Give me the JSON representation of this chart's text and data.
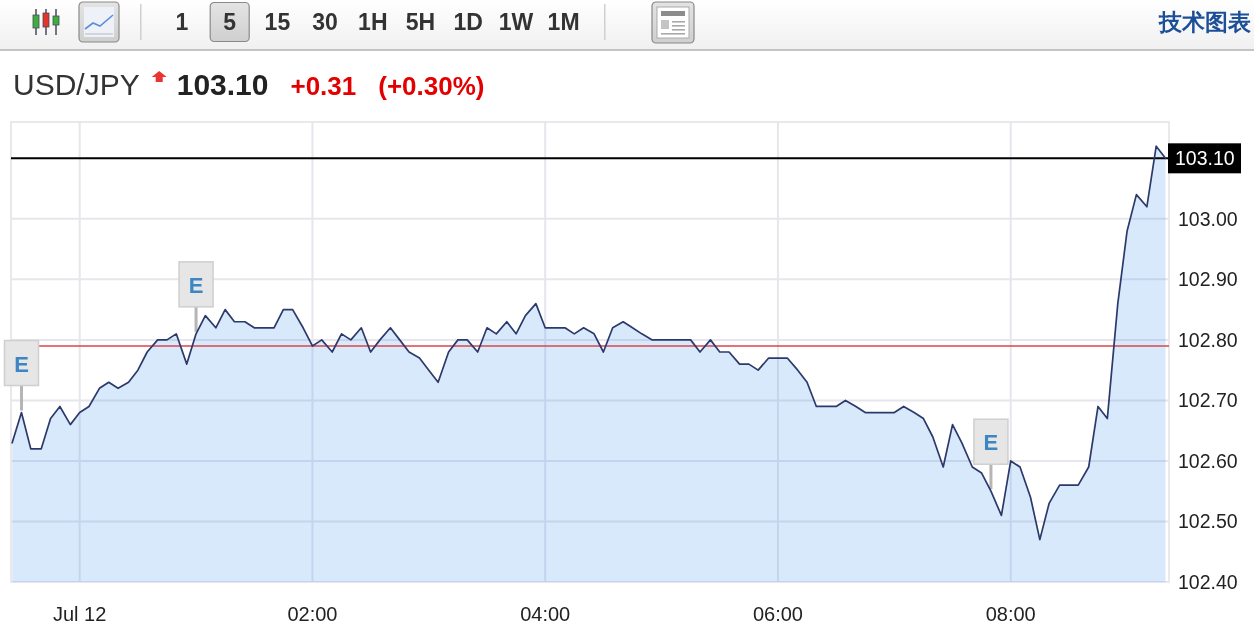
{
  "chart_data": {
    "type": "area",
    "title": "USD/JPY",
    "subtitle": "103.10",
    "annotations": [
      "1 5 15 30 1H 5H 1D 1W 1M",
      "技术图表",
      "+0.31",
      "(+0.30%)",
      {
        "text": "E",
        "x": -0.5,
        "y": 102.68
      },
      {
        "text": "E",
        "x": 1,
        "y": 102.81
      },
      {
        "text": "E",
        "x": 7.83,
        "y": 102.55
      }
    ],
    "x": [
      -0.58,
      -0.5,
      -0.42,
      -0.33,
      -0.25,
      -0.17,
      -0.08,
      0,
      0.08,
      0.17,
      0.25,
      0.33,
      0.42,
      0.5,
      0.58,
      0.67,
      0.75,
      0.83,
      0.92,
      1,
      1.08,
      1.17,
      1.25,
      1.33,
      1.42,
      1.5,
      1.58,
      1.67,
      1.75,
      1.83,
      1.92,
      2,
      2.08,
      2.17,
      2.25,
      2.33,
      2.42,
      2.5,
      2.58,
      2.67,
      2.75,
      2.83,
      2.92,
      3,
      3.08,
      3.17,
      3.25,
      3.33,
      3.42,
      3.5,
      3.58,
      3.67,
      3.75,
      3.83,
      3.92,
      4,
      4.08,
      4.17,
      4.25,
      4.33,
      4.42,
      4.5,
      4.58,
      4.67,
      4.75,
      4.83,
      4.92,
      5,
      5.08,
      5.17,
      5.25,
      5.33,
      5.42,
      5.5,
      5.58,
      5.67,
      5.75,
      5.83,
      5.92,
      6,
      6.08,
      6.17,
      6.25,
      6.33,
      6.42,
      6.5,
      6.58,
      6.67,
      6.75,
      6.83,
      6.92,
      7,
      7.08,
      7.17,
      7.25,
      7.33,
      7.42,
      7.5,
      7.58,
      7.67,
      7.75,
      7.83,
      7.92,
      8,
      8.08,
      8.17,
      8.25,
      8.33,
      8.42,
      8.5,
      8.58,
      8.67,
      8.75,
      8.83,
      8.92,
      9,
      9.08,
      9.17,
      9.25,
      9.33
    ],
    "series": [
      {
        "color": "#2c3a6b",
        "values": [
          102.63,
          102.68,
          102.62,
          102.62,
          102.67,
          102.69,
          102.66,
          102.68,
          102.69,
          102.72,
          102.73,
          102.72,
          102.73,
          102.75,
          102.78,
          102.8,
          102.8,
          102.81,
          102.76,
          102.81,
          102.84,
          102.82,
          102.85,
          102.83,
          102.83,
          102.82,
          102.82,
          102.82,
          102.85,
          102.85,
          102.82,
          102.79,
          102.8,
          102.78,
          102.81,
          102.8,
          102.82,
          102.78,
          102.8,
          102.82,
          102.8,
          102.78,
          102.77,
          102.75,
          102.73,
          102.78,
          102.8,
          102.8,
          102.78,
          102.82,
          102.81,
          102.83,
          102.81,
          102.84,
          102.86,
          102.82,
          102.82,
          102.82,
          102.81,
          102.82,
          102.81,
          102.78,
          102.82,
          102.83,
          102.82,
          102.81,
          102.8,
          102.8,
          102.8,
          102.8,
          102.8,
          102.78,
          102.8,
          102.78,
          102.78,
          102.76,
          102.76,
          102.75,
          102.77,
          102.77,
          102.77,
          102.75,
          102.73,
          102.69,
          102.69,
          102.69,
          102.7,
          102.69,
          102.68,
          102.68,
          102.68,
          102.68,
          102.69,
          102.68,
          102.67,
          102.64,
          102.59,
          102.66,
          102.63,
          102.59,
          102.58,
          102.55,
          102.51,
          102.6,
          102.59,
          102.54,
          102.47,
          102.53,
          102.56,
          102.56,
          102.56,
          102.59,
          102.69,
          102.67,
          102.86,
          102.98,
          103.04,
          103.02,
          103.12,
          103.1
        ]
      }
    ],
    "xlim": [
      -0.59,
      9.36
    ],
    "xticks": [
      {
        "value": 0,
        "label": "Jul 12"
      },
      {
        "value": 2,
        "label": "02:00"
      },
      {
        "value": 4,
        "label": "04:00"
      },
      {
        "value": 6,
        "label": "06:00"
      },
      {
        "value": 8,
        "label": "08:00"
      }
    ],
    "ylim": [
      102.4,
      103.16
    ],
    "yticks": [
      {
        "value": 102.4,
        "label": "102.40"
      },
      {
        "value": 102.5,
        "label": "102.50"
      },
      {
        "value": 102.6,
        "label": "102.60"
      },
      {
        "value": 102.7,
        "label": "102.70"
      },
      {
        "value": 102.8,
        "label": "102.80"
      },
      {
        "value": 102.9,
        "label": "102.90"
      },
      {
        "value": 103,
        "label": "103.00"
      }
    ],
    "ref_lines": [
      {
        "axis": "y",
        "value": 103.1,
        "label": "103.10",
        "color": "#000000"
      },
      {
        "axis": "y",
        "value": 102.79,
        "color": "#d8464b"
      }
    ],
    "grid": true
  }
}
